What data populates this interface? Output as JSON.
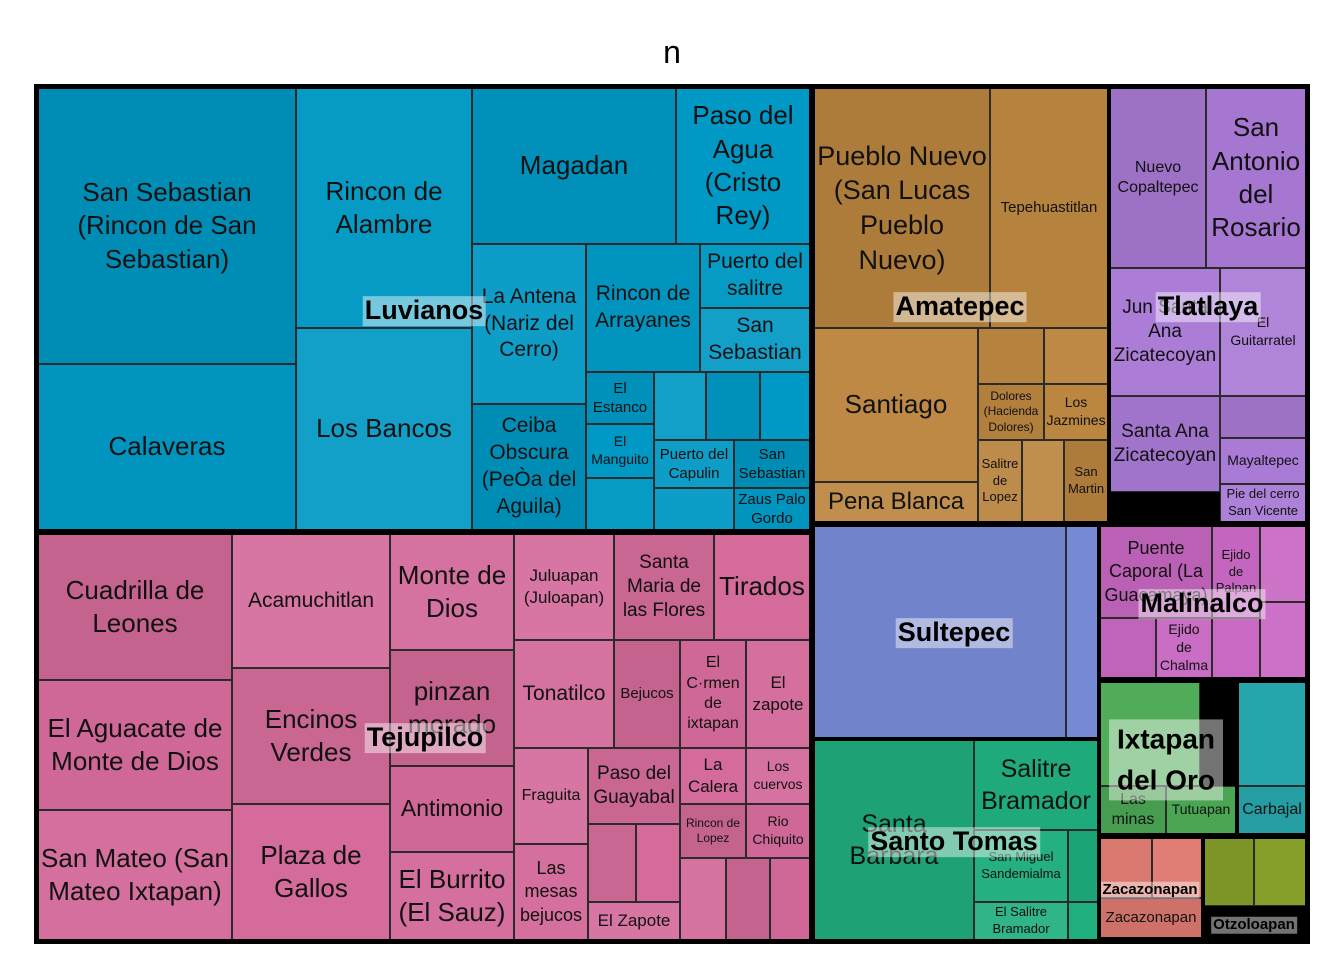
{
  "chart_data": {
    "type": "treemap",
    "title": "n",
    "groups": [
      {
        "id": "luvianos",
        "name": "Luvianos",
        "color": "#0098c4",
        "children": [
          {
            "id": "san-sebastian-rincon",
            "name": "San Sebastian (Rincon de San Sebastian)"
          },
          {
            "id": "calaveras",
            "name": "Calaveras"
          },
          {
            "id": "rincon-de-alambre",
            "name": "Rincon de Alambre"
          },
          {
            "id": "los-bancos",
            "name": "Los Bancos"
          },
          {
            "id": "magadan",
            "name": "Magadan"
          },
          {
            "id": "paso-del-agua",
            "name": "Paso del Agua (Cristo Rey)"
          },
          {
            "id": "la-antena",
            "name": "La Antena (Nariz del Cerro)"
          },
          {
            "id": "ceiba-obscura",
            "name": "Ceiba Obscura (PeÒa del Aguila)"
          },
          {
            "id": "rincon-de-arrayanes",
            "name": "Rincon de Arrayanes"
          },
          {
            "id": "puerto-del-salitre",
            "name": "Puerto del salitre"
          },
          {
            "id": "san-sebastian-2",
            "name": "San Sebastian"
          },
          {
            "id": "el-estanco",
            "name": "El Estanco"
          },
          {
            "id": "el-manguito",
            "name": "El Manguito"
          },
          {
            "id": "puerto-del-capulin",
            "name": "Puerto del Capulin"
          },
          {
            "id": "san-sebastian-3",
            "name": "San Sebastian"
          },
          {
            "id": "zaus-palo-gordo",
            "name": "Zaus Palo Gordo"
          },
          {
            "id": "luv-u1",
            "name": ""
          },
          {
            "id": "luv-u2",
            "name": ""
          },
          {
            "id": "luv-u3",
            "name": ""
          },
          {
            "id": "luv-u4",
            "name": ""
          },
          {
            "id": "luv-u5",
            "name": ""
          }
        ]
      },
      {
        "id": "amatepec",
        "name": "Amatepec",
        "color": "#bb8640",
        "children": [
          {
            "id": "pueblo-nuevo",
            "name": "Pueblo Nuevo (San Lucas Pueblo Nuevo)"
          },
          {
            "id": "tepehuastitlan",
            "name": "Tepehuastitlan"
          },
          {
            "id": "santiago",
            "name": "Santiago"
          },
          {
            "id": "pena-blanca",
            "name": "Pena Blanca"
          },
          {
            "id": "dolores",
            "name": "Dolores (Hacienda Dolores)"
          },
          {
            "id": "los-jazmines",
            "name": "Los Jazmines"
          },
          {
            "id": "salitre-de-lopez",
            "name": "Salitre de Lopez"
          },
          {
            "id": "san-martin",
            "name": "San Martin"
          },
          {
            "id": "ama-u1",
            "name": ""
          },
          {
            "id": "ama-u2",
            "name": ""
          },
          {
            "id": "ama-u3",
            "name": ""
          }
        ]
      },
      {
        "id": "tlatlaya",
        "name": "Tlatlaya",
        "color": "#a97ad6",
        "children": [
          {
            "id": "nuevo-copaltepec",
            "name": "Nuevo Copaltepec"
          },
          {
            "id": "san-antonio-del-rosario",
            "name": "San Antonio del Rosario"
          },
          {
            "id": "santa-ana-zicatecoyan-jun",
            "name": "Jun Santa Ana Zicatecoyan"
          },
          {
            "id": "el-guitarratel",
            "name": "El Guitarratel"
          },
          {
            "id": "santa-ana-zicatecoyan",
            "name": "Santa Ana Zicatecoyan"
          },
          {
            "id": "mayaltepec",
            "name": "Mayaltepec"
          },
          {
            "id": "pie-del-cerro",
            "name": "Pie del cerro San Vicente"
          },
          {
            "id": "tla-u1",
            "name": ""
          }
        ]
      },
      {
        "id": "tejupilco",
        "name": "Tejupilco",
        "color": "#d46b9a",
        "children": [
          {
            "id": "cuadrilla-de-leones",
            "name": "Cuadrilla de Leones"
          },
          {
            "id": "el-aguacate",
            "name": "El Aguacate de Monte de Dios"
          },
          {
            "id": "san-mateo",
            "name": "San Mateo (San Mateo Ixtapan)"
          },
          {
            "id": "acamuchitlan",
            "name": "Acamuchitlan"
          },
          {
            "id": "encinos-verdes",
            "name": "Encinos Verdes"
          },
          {
            "id": "plaza-de-gallos",
            "name": "Plaza de Gallos"
          },
          {
            "id": "monte-de-dios",
            "name": "Monte de Dios"
          },
          {
            "id": "pinzan-morado",
            "name": "pinzan morado"
          },
          {
            "id": "antimonio",
            "name": "Antimonio"
          },
          {
            "id": "el-burrito",
            "name": "El Burrito (El Sauz)"
          },
          {
            "id": "juluapan",
            "name": "Juluapan (Juloapan)"
          },
          {
            "id": "santa-maria",
            "name": "Santa Maria de las Flores"
          },
          {
            "id": "tirados",
            "name": "Tirados"
          },
          {
            "id": "tonatilco",
            "name": "Tonatilco"
          },
          {
            "id": "bejucos",
            "name": "Bejucos"
          },
          {
            "id": "el-carmen",
            "name": "El C·rmen de ixtapan"
          },
          {
            "id": "el-zapote-1",
            "name": "El zapote"
          },
          {
            "id": "fraguita",
            "name": "Fraguita"
          },
          {
            "id": "paso-del-guayabal",
            "name": "Paso del Guayabal"
          },
          {
            "id": "la-calera",
            "name": "La Calera"
          },
          {
            "id": "los-cuervos",
            "name": "Los cuervos"
          },
          {
            "id": "rincon-de-lopez",
            "name": "Rincon de Lopez"
          },
          {
            "id": "rio-chiquito",
            "name": "Rio Chiquito"
          },
          {
            "id": "las-mesas",
            "name": "Las mesas bejucos"
          },
          {
            "id": "el-zapote-2",
            "name": "El Zapote"
          },
          {
            "id": "tej-u1",
            "name": ""
          },
          {
            "id": "tej-u2",
            "name": ""
          },
          {
            "id": "tej-u3",
            "name": ""
          },
          {
            "id": "tej-u4",
            "name": ""
          },
          {
            "id": "tej-u5",
            "name": ""
          }
        ]
      },
      {
        "id": "sultepec",
        "name": "Sultepec",
        "color": "#7a8edb",
        "children": [
          {
            "id": "sul-u1",
            "name": ""
          },
          {
            "id": "sul-u2",
            "name": ""
          }
        ]
      },
      {
        "id": "malinalco",
        "name": "Malinalco",
        "color": "#c969c4",
        "children": [
          {
            "id": "puente-caporal",
            "name": "Puente Caporal (La Guacamaya)"
          },
          {
            "id": "ejido-de-palpan",
            "name": "Ejido de Palpan"
          },
          {
            "id": "ejido-de-chalma",
            "name": "Ejido de Chalma"
          },
          {
            "id": "mal-u1",
            "name": ""
          },
          {
            "id": "mal-u2",
            "name": ""
          },
          {
            "id": "mal-u3",
            "name": ""
          },
          {
            "id": "mal-u4",
            "name": ""
          }
        ]
      },
      {
        "id": "santo-tomas",
        "name": "Santo Tomas",
        "color": "#1fae7e",
        "children": [
          {
            "id": "santa-barbara",
            "name": "Santa Barbara"
          },
          {
            "id": "salitre-bramador",
            "name": "Salitre Bramador"
          },
          {
            "id": "san-miguel-sandemialma",
            "name": "San Miguel Sandemialma"
          },
          {
            "id": "el-salitre-bramador",
            "name": "El Salitre Bramador"
          },
          {
            "id": "sto-u1",
            "name": ""
          },
          {
            "id": "sto-u2",
            "name": ""
          }
        ]
      },
      {
        "id": "ixtapan-del-oro",
        "name": "Ixtapan del Oro",
        "color": "#4daa55",
        "children": [
          {
            "id": "las-minas",
            "name": "Las minas"
          },
          {
            "id": "tutuapan",
            "name": "Tutuapan"
          },
          {
            "id": "ixt-u1",
            "name": ""
          }
        ]
      },
      {
        "id": "carbajal-group",
        "name": "",
        "color": "#27aab0",
        "children": [
          {
            "id": "carbajal",
            "name": "Carbajal"
          },
          {
            "id": "car-u1",
            "name": ""
          }
        ]
      },
      {
        "id": "zacazonapan",
        "name": "Zacazonapan",
        "color": "#df7b72",
        "children": [
          {
            "id": "zacazonapan-loc",
            "name": "Zacazonapan"
          },
          {
            "id": "zac-u1",
            "name": ""
          },
          {
            "id": "zac-u2",
            "name": ""
          }
        ]
      },
      {
        "id": "otzoloapan",
        "name": "Otzoloapan",
        "color": "#88a22a",
        "children": [
          {
            "id": "otz-u1",
            "name": ""
          },
          {
            "id": "otz-u2",
            "name": ""
          }
        ]
      }
    ]
  }
}
